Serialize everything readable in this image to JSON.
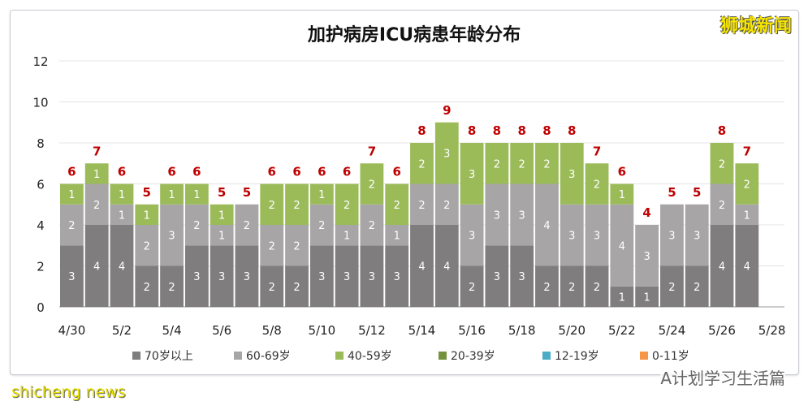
{
  "watermarks": {
    "top_right": "狮城新闻",
    "bottom_left": "shicheng news",
    "bottom_right": "A计划学习生活篇"
  },
  "chart_data": {
    "type": "bar",
    "stacked": true,
    "title": "加护病房ICU病患年龄分布",
    "xlabel": "",
    "ylabel": "",
    "ylim": [
      0,
      12
    ],
    "yticks": [
      0,
      2,
      4,
      6,
      8,
      10,
      12
    ],
    "grid": true,
    "legend_position": "bottom",
    "categories": [
      "4/30",
      "5/1",
      "5/2",
      "5/3",
      "5/4",
      "5/5",
      "5/6",
      "5/7",
      "5/8",
      "5/9",
      "5/10",
      "5/11",
      "5/12",
      "5/13",
      "5/14",
      "5/15",
      "5/16",
      "5/17",
      "5/18",
      "5/19",
      "5/20",
      "5/21",
      "5/22",
      "5/23",
      "5/24",
      "5/25",
      "5/26",
      "5/27",
      "5/28"
    ],
    "xtick_labels": [
      "4/30",
      "5/2",
      "5/4",
      "5/6",
      "5/8",
      "5/10",
      "5/12",
      "5/14",
      "5/16",
      "5/18",
      "5/20",
      "5/22",
      "5/24",
      "5/26",
      "5/28"
    ],
    "series": [
      {
        "name": "70岁以上",
        "color": "#7f7d7e",
        "values": [
          3,
          4,
          4,
          2,
          2,
          3,
          3,
          3,
          2,
          2,
          3,
          3,
          3,
          3,
          4,
          4,
          2,
          3,
          3,
          2,
          2,
          2,
          1,
          1,
          2,
          2,
          4,
          4,
          null
        ]
      },
      {
        "name": "60-69岁",
        "color": "#a7a5a6",
        "values": [
          2,
          2,
          1,
          2,
          3,
          2,
          1,
          2,
          2,
          2,
          2,
          1,
          2,
          1,
          2,
          2,
          3,
          3,
          3,
          4,
          3,
          3,
          4,
          3,
          3,
          3,
          2,
          1,
          null
        ]
      },
      {
        "name": "40-59岁",
        "color": "#9bbb59",
        "values": [
          1,
          1,
          1,
          1,
          1,
          1,
          1,
          0,
          2,
          2,
          1,
          2,
          2,
          2,
          2,
          3,
          3,
          2,
          2,
          2,
          3,
          2,
          1,
          0,
          0,
          0,
          2,
          2,
          null
        ]
      },
      {
        "name": "20-39岁",
        "color": "#76923c",
        "values": [
          0,
          0,
          0,
          0,
          0,
          0,
          0,
          0,
          0,
          0,
          0,
          0,
          0,
          0,
          0,
          0,
          0,
          0,
          0,
          0,
          0,
          0,
          0,
          0,
          0,
          0,
          0,
          0,
          null
        ]
      },
      {
        "name": "12-19岁",
        "color": "#4bacc6",
        "values": [
          0,
          0,
          0,
          0,
          0,
          0,
          0,
          0,
          0,
          0,
          0,
          0,
          0,
          0,
          0,
          0,
          0,
          0,
          0,
          0,
          0,
          0,
          0,
          0,
          0,
          0,
          0,
          0,
          null
        ]
      },
      {
        "name": "0-11岁",
        "color": "#f79646",
        "values": [
          0,
          0,
          0,
          0,
          0,
          0,
          0,
          0,
          0,
          0,
          0,
          0,
          0,
          0,
          0,
          0,
          0,
          0,
          0,
          0,
          0,
          0,
          0,
          0,
          0,
          0,
          0,
          0,
          null
        ]
      }
    ],
    "totals": [
      6,
      7,
      6,
      5,
      6,
      6,
      5,
      5,
      6,
      6,
      6,
      6,
      7,
      6,
      8,
      9,
      8,
      8,
      8,
      8,
      8,
      7,
      6,
      4,
      5,
      5,
      8,
      7,
      null
    ],
    "total_label_color": "#c00000"
  }
}
